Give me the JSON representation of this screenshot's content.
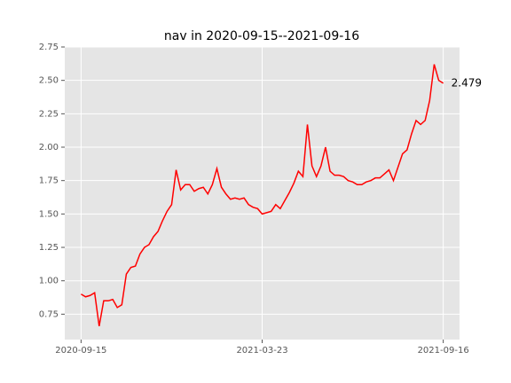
{
  "chart_data": {
    "type": "line",
    "title": "nav in 2020-09-15--2021-09-16",
    "categories": [
      "2020-09-15",
      null,
      null,
      null,
      null,
      null,
      null,
      null,
      null,
      null,
      null,
      null,
      null,
      null,
      null,
      null,
      null,
      null,
      null,
      null,
      null,
      null,
      null,
      null,
      null,
      null,
      null,
      null,
      null,
      null,
      null,
      null,
      null,
      null,
      null,
      null,
      null,
      null,
      null,
      null,
      "2021-03-23",
      null,
      null,
      null,
      null,
      null,
      null,
      null,
      null,
      null,
      null,
      null,
      null,
      null,
      null,
      null,
      null,
      null,
      null,
      null,
      null,
      null,
      null,
      null,
      null,
      null,
      null,
      null,
      null,
      null,
      null,
      null,
      null,
      null,
      null,
      null,
      null,
      null,
      null,
      null,
      "2021-09-16"
    ],
    "series": [
      {
        "name": "nav",
        "color": "#ff0000",
        "values": [
          0.9,
          0.88,
          0.89,
          0.91,
          0.66,
          0.85,
          0.85,
          0.86,
          0.8,
          0.82,
          1.05,
          1.1,
          1.11,
          1.2,
          1.25,
          1.27,
          1.33,
          1.37,
          1.45,
          1.52,
          1.57,
          1.83,
          1.68,
          1.72,
          1.72,
          1.67,
          1.69,
          1.7,
          1.65,
          1.72,
          1.84,
          1.7,
          1.65,
          1.61,
          1.62,
          1.61,
          1.62,
          1.57,
          1.55,
          1.54,
          1.5,
          1.51,
          1.52,
          1.57,
          1.54,
          1.6,
          1.66,
          1.73,
          1.82,
          1.78,
          2.17,
          1.86,
          1.78,
          1.86,
          2.0,
          1.82,
          1.79,
          1.79,
          1.78,
          1.75,
          1.74,
          1.72,
          1.72,
          1.74,
          1.75,
          1.77,
          1.77,
          1.8,
          1.83,
          1.75,
          1.85,
          1.95,
          1.98,
          2.1,
          2.2,
          2.17,
          2.2,
          2.35,
          2.62,
          2.5,
          2.479
        ]
      }
    ],
    "annotation": "2.479",
    "ylim": [
      0.56,
      2.75
    ],
    "yticks": [
      0.75,
      {
        "value": 1.0,
        "label": "1.00"
      },
      1.25,
      {
        "value": 1.5,
        "label": "1.50"
      },
      1.75,
      {
        "value": 2.0,
        "label": "2.00"
      },
      2.25,
      {
        "value": 2.5,
        "label": "2.50"
      },
      2.75
    ],
    "grid": true,
    "background": "#e5e5e5"
  }
}
